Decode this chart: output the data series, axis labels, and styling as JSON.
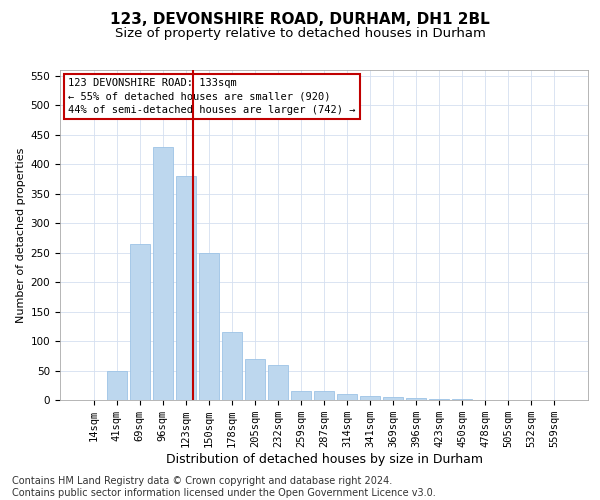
{
  "title1": "123, DEVONSHIRE ROAD, DURHAM, DH1 2BL",
  "title2": "Size of property relative to detached houses in Durham",
  "xlabel": "Distribution of detached houses by size in Durham",
  "ylabel": "Number of detached properties",
  "categories": [
    "14sqm",
    "41sqm",
    "69sqm",
    "96sqm",
    "123sqm",
    "150sqm",
    "178sqm",
    "205sqm",
    "232sqm",
    "259sqm",
    "287sqm",
    "314sqm",
    "341sqm",
    "369sqm",
    "396sqm",
    "423sqm",
    "450sqm",
    "478sqm",
    "505sqm",
    "532sqm",
    "559sqm"
  ],
  "values": [
    0,
    50,
    265,
    430,
    380,
    250,
    115,
    70,
    60,
    15,
    15,
    10,
    7,
    5,
    3,
    2,
    1,
    0,
    0,
    0,
    0
  ],
  "bar_color": "#bdd7ee",
  "bar_edgecolor": "#9dc3e6",
  "marker_line_index": 4,
  "marker_line_color": "#c00000",
  "annotation_line0": "123 DEVONSHIRE ROAD: 133sqm",
  "annotation_line1": "← 55% of detached houses are smaller (920)",
  "annotation_line2": "44% of semi-detached houses are larger (742) →",
  "annotation_box_edgecolor": "#c00000",
  "ylim": [
    0,
    560
  ],
  "yticks": [
    0,
    50,
    100,
    150,
    200,
    250,
    300,
    350,
    400,
    450,
    500,
    550
  ],
  "footer1": "Contains HM Land Registry data © Crown copyright and database right 2024.",
  "footer2": "Contains public sector information licensed under the Open Government Licence v3.0.",
  "bg_color": "#ffffff",
  "grid_color": "#d4dff0",
  "title1_fontsize": 11,
  "title2_fontsize": 9.5,
  "xlabel_fontsize": 9,
  "ylabel_fontsize": 8,
  "tick_fontsize": 7.5,
  "footer_fontsize": 7,
  "ann_fontsize": 7.5
}
